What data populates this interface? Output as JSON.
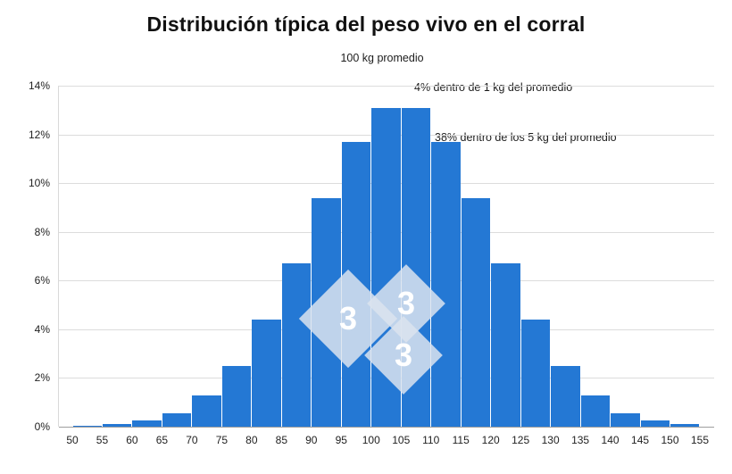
{
  "page": {
    "background": "#ffffff"
  },
  "chart_data": {
    "type": "bar",
    "title": "Distribución típica del peso vivo en el corral",
    "xlabel": "",
    "ylabel": "",
    "categories": [
      "50",
      "55",
      "60",
      "65",
      "70",
      "75",
      "80",
      "85",
      "90",
      "95",
      "100",
      "105",
      "110",
      "115",
      "120",
      "125",
      "130",
      "135",
      "140",
      "145",
      "150"
    ],
    "values": [
      0.03,
      0.1,
      0.25,
      0.55,
      1.3,
      2.5,
      4.4,
      6.7,
      9.4,
      11.7,
      13.1,
      13.1,
      11.7,
      9.4,
      6.7,
      4.4,
      2.5,
      1.3,
      0.55,
      0.25,
      0.1
    ],
    "x_tick_labels": [
      "50",
      "55",
      "60",
      "65",
      "70",
      "75",
      "80",
      "85",
      "90",
      "95",
      "100",
      "105",
      "110",
      "115",
      "120",
      "125",
      "130",
      "135",
      "140",
      "145",
      "150",
      "155"
    ],
    "y_tick_labels": [
      "0%",
      "2%",
      "4%",
      "6%",
      "8%",
      "10%",
      "12%",
      "14%"
    ],
    "ylim": [
      0,
      14
    ],
    "grid": "horizontal",
    "legend": "none",
    "bar_color": "#2478d4",
    "annotations": [
      {
        "text": "100 kg promedio"
      },
      {
        "text": "4% dentro de 1 kg del promedio"
      },
      {
        "text": "38% dentro de los 5 kg del promedio"
      }
    ]
  },
  "watermark": {
    "glyphs": [
      "3",
      "3",
      "3"
    ]
  }
}
